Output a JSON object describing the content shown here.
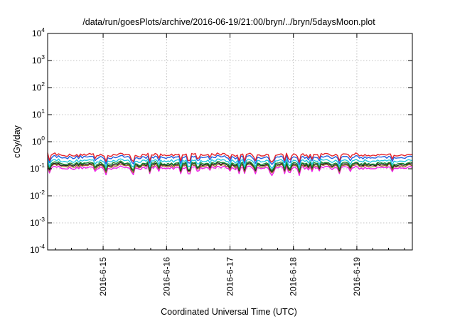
{
  "chart_data": {
    "type": "line",
    "title": "/data/run/goesPlots/archive/2016-06-19/21:00/bryn/../bryn/5daysMoon.plot",
    "xlabel": "Coordinated Universal Time (UTC)",
    "ylabel": "cGy/day",
    "yscale": "log",
    "ylim": [
      0.0001,
      10000
    ],
    "yticks": [
      {
        "base": "10",
        "exp": "4"
      },
      {
        "base": "10",
        "exp": "3"
      },
      {
        "base": "10",
        "exp": "2"
      },
      {
        "base": "10",
        "exp": "1"
      },
      {
        "base": "10",
        "exp": "0"
      },
      {
        "base": "10",
        "exp": "-1"
      },
      {
        "base": "10",
        "exp": "-2"
      },
      {
        "base": "10",
        "exp": "-3"
      },
      {
        "base": "10",
        "exp": "-4"
      }
    ],
    "xlim": [
      "2016-06-14 03:00",
      "2016-06-19 21:00"
    ],
    "xticks": [
      "2016-6-15",
      "2016-6-16",
      "2016-6-17",
      "2016-6-18",
      "2016-6-19"
    ],
    "grid": true,
    "legend": "none",
    "series": [
      {
        "color": "#e4232b",
        "level": 0.33
      },
      {
        "color": "#1f5fe0",
        "level": 0.27
      },
      {
        "color": "#22c7e0",
        "level": 0.2
      },
      {
        "color": "#1a8a2e",
        "level": 0.16
      },
      {
        "color": "#222222",
        "level": 0.145
      },
      {
        "color": "#a06a2a",
        "level": 0.13
      },
      {
        "color": "#f01ce6",
        "level": 0.11
      }
    ]
  }
}
